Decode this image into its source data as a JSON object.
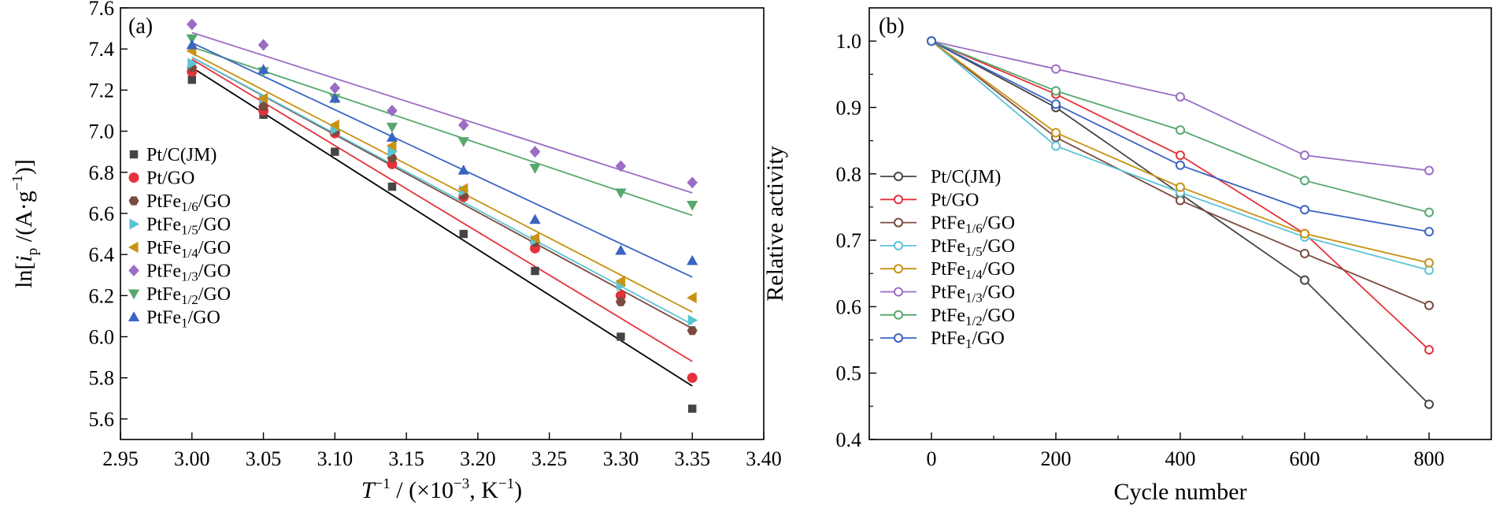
{
  "chart_data": [
    {
      "type": "scatter",
      "panel_label": "(a)",
      "xlabel": "T⁻¹ / (×10⁻³, K⁻¹)",
      "ylabel": "ln[iₚ /(A·g⁻¹)]",
      "xlim": [
        2.95,
        3.4
      ],
      "ylim": [
        5.5,
        7.6
      ],
      "xticks": [
        "2.95",
        "3.00",
        "3.05",
        "3.10",
        "3.15",
        "3.20",
        "3.25",
        "3.30",
        "3.35",
        "3.40"
      ],
      "yticks": [
        "5.6",
        "5.8",
        "6.0",
        "6.2",
        "6.4",
        "6.6",
        "6.8",
        "7.0",
        "7.2",
        "7.4",
        "7.6"
      ],
      "legend_position": "bottom-left",
      "grid": false,
      "x": [
        3.0,
        3.05,
        3.1,
        3.14,
        3.19,
        3.24,
        3.3,
        3.35
      ],
      "series": [
        {
          "name": "Pt/C(JM)",
          "marker": "square",
          "color": "#454545",
          "values": [
            7.25,
            7.08,
            6.9,
            6.73,
            6.5,
            6.32,
            6.0,
            5.65
          ],
          "fit": [
            7.31,
            5.76
          ]
        },
        {
          "name": "Pt/GO",
          "marker": "circle",
          "color": "#e5323b",
          "values": [
            7.29,
            7.1,
            6.99,
            6.84,
            6.68,
            6.43,
            6.2,
            5.8
          ],
          "fit": [
            7.35,
            5.88
          ]
        },
        {
          "name": "PtFe1/6/GO",
          "marker": "hexagon",
          "color": "#7a4a3e",
          "values": [
            7.31,
            7.12,
            7.0,
            6.87,
            6.69,
            6.46,
            6.17,
            6.03
          ],
          "fit": [
            7.36,
            6.04
          ]
        },
        {
          "name": "PtFe1/5/GO",
          "marker": "triangle-right",
          "color": "#5bc4d6",
          "values": [
            7.33,
            7.16,
            7.01,
            6.9,
            6.71,
            6.47,
            6.25,
            6.08
          ],
          "fit": [
            7.36,
            6.06
          ]
        },
        {
          "name": "PtFe1/4/GO",
          "marker": "triangle-left",
          "color": "#c89212",
          "values": [
            7.39,
            7.16,
            7.03,
            6.93,
            6.72,
            6.48,
            6.27,
            6.19
          ],
          "fit": [
            7.38,
            6.12
          ]
        },
        {
          "name": "PtFe1/3/GO",
          "marker": "diamond",
          "color": "#9b6dc4",
          "values": [
            7.52,
            7.42,
            7.21,
            7.1,
            7.03,
            6.9,
            6.83,
            6.75
          ],
          "fit": [
            7.48,
            6.7
          ]
        },
        {
          "name": "PtFe1/2/GO",
          "marker": "triangle-down",
          "color": "#56a86e",
          "values": [
            7.45,
            7.29,
            7.16,
            7.02,
            6.95,
            6.82,
            6.7,
            6.64
          ],
          "fit": [
            7.41,
            6.59
          ]
        },
        {
          "name": "PtFe1/GO",
          "marker": "triangle-up",
          "color": "#3a64c2",
          "values": [
            7.42,
            7.3,
            7.16,
            6.97,
            6.81,
            6.57,
            6.42,
            6.37
          ],
          "fit": [
            7.43,
            6.29
          ]
        }
      ]
    },
    {
      "type": "line",
      "panel_label": "(b)",
      "xlabel": "Cycle number",
      "ylabel": "Relative activity",
      "xlim": [
        -100,
        900
      ],
      "ylim": [
        0.4,
        1.05
      ],
      "xticks": [
        "0",
        "200",
        "400",
        "600",
        "800"
      ],
      "yticks": [
        "0.4",
        "0.5",
        "0.6",
        "0.7",
        "0.8",
        "0.9",
        "1.0"
      ],
      "legend_position": "bottom-left",
      "grid": false,
      "x": [
        0,
        200,
        400,
        600,
        800
      ],
      "series": [
        {
          "name": "Pt/C(JM)",
          "color": "#454545",
          "values": [
            1.0,
            0.9,
            0.77,
            0.64,
            0.453
          ]
        },
        {
          "name": "Pt/GO",
          "color": "#e5323b",
          "values": [
            1.0,
            0.92,
            0.828,
            0.71,
            0.535
          ]
        },
        {
          "name": "PtFe1/6/GO",
          "color": "#7a4a3e",
          "values": [
            1.0,
            0.855,
            0.76,
            0.68,
            0.602
          ]
        },
        {
          "name": "PtFe1/5/GO",
          "color": "#5bc4d6",
          "values": [
            1.0,
            0.842,
            0.772,
            0.705,
            0.655
          ]
        },
        {
          "name": "PtFe1/4/GO",
          "color": "#c89212",
          "values": [
            1.0,
            0.862,
            0.78,
            0.71,
            0.666
          ]
        },
        {
          "name": "PtFe1/3/GO",
          "color": "#9b6dc4",
          "values": [
            1.0,
            0.958,
            0.916,
            0.828,
            0.805
          ]
        },
        {
          "name": "PtFe1/2/GO",
          "color": "#56a86e",
          "values": [
            1.0,
            0.925,
            0.866,
            0.79,
            0.742
          ]
        },
        {
          "name": "PtFe1/GO",
          "color": "#3a64c2",
          "values": [
            1.0,
            0.905,
            0.813,
            0.746,
            0.713
          ]
        }
      ]
    }
  ]
}
